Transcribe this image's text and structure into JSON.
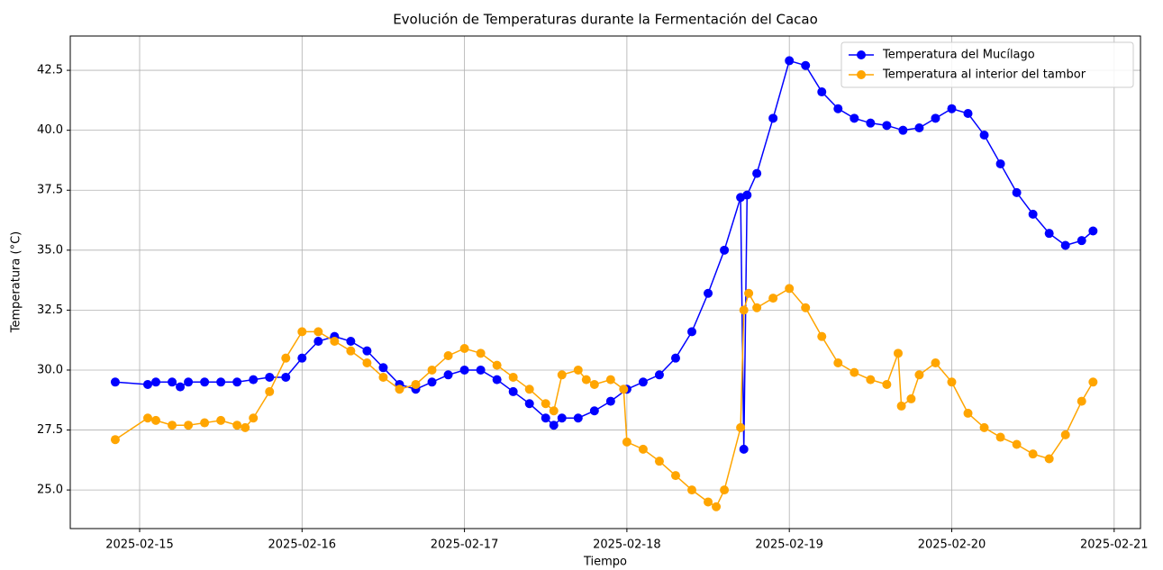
{
  "chart_data": {
    "type": "line",
    "title": "Evolución de Temperaturas durante la Fermentación del Cacao",
    "xlabel": "Tiempo",
    "ylabel": "Temperatura (°C)",
    "xlim": [
      -0.427,
      6.162
    ],
    "ylim": [
      23.39,
      43.93
    ],
    "xticks": [
      {
        "value": 0,
        "label": "2025-02-15"
      },
      {
        "value": 1,
        "label": "2025-02-16"
      },
      {
        "value": 2,
        "label": "2025-02-17"
      },
      {
        "value": 3,
        "label": "2025-02-18"
      },
      {
        "value": 4,
        "label": "2025-02-19"
      },
      {
        "value": 5,
        "label": "2025-02-20"
      },
      {
        "value": 6,
        "label": "2025-02-21"
      }
    ],
    "yticks": [
      {
        "value": 25,
        "label": "25.0"
      },
      27.5,
      {
        "value": 30,
        "label": "30.0"
      },
      32.5,
      {
        "value": 35,
        "label": "35.0"
      },
      37.5,
      {
        "value": 40,
        "label": "40.0"
      },
      42.5
    ],
    "grid": true,
    "legend": "upper right",
    "series": [
      {
        "name": "Temperatura del Mucílago",
        "color": "#0000ff",
        "x": [
          -0.15,
          0.05,
          0.1,
          0.2,
          0.25,
          0.3,
          0.4,
          0.5,
          0.6,
          0.7,
          0.8,
          0.9,
          1.0,
          1.1,
          1.2,
          1.3,
          1.4,
          1.5,
          1.6,
          1.7,
          1.8,
          1.9,
          2.0,
          2.1,
          2.2,
          2.3,
          2.4,
          2.5,
          2.55,
          2.6,
          2.7,
          2.8,
          2.9,
          3.0,
          3.1,
          3.2,
          3.3,
          3.4,
          3.5,
          3.6,
          3.7,
          3.72,
          3.74,
          3.8,
          3.9,
          4.0,
          4.1,
          4.2,
          4.3,
          4.4,
          4.5,
          4.6,
          4.7,
          4.8,
          4.9,
          5.0,
          5.1,
          5.2,
          5.3,
          5.4,
          5.5,
          5.6,
          5.7,
          5.8,
          5.87
        ],
        "values": [
          29.5,
          29.4,
          29.5,
          29.5,
          29.3,
          29.5,
          29.5,
          29.5,
          29.5,
          29.6,
          29.7,
          29.7,
          30.5,
          31.2,
          31.4,
          31.2,
          30.8,
          30.1,
          29.4,
          29.2,
          29.5,
          29.8,
          30.0,
          30.0,
          29.6,
          29.1,
          28.6,
          28.0,
          27.7,
          28.0,
          28.0,
          28.3,
          28.7,
          29.2,
          29.5,
          29.8,
          30.5,
          31.6,
          33.2,
          35.0,
          37.2,
          26.7,
          37.3,
          38.2,
          40.5,
          42.9,
          42.7,
          41.6,
          40.9,
          40.5,
          40.3,
          40.2,
          40.0,
          40.1,
          40.5,
          40.9,
          40.7,
          39.8,
          38.6,
          37.4,
          36.5,
          35.7,
          35.2,
          35.4,
          35.8
        ]
      },
      {
        "name": "Temperatura al interior del tambor",
        "color": "#ffa500",
        "x": [
          -0.15,
          0.05,
          0.1,
          0.2,
          0.3,
          0.4,
          0.5,
          0.6,
          0.65,
          0.7,
          0.8,
          0.9,
          1.0,
          1.1,
          1.2,
          1.3,
          1.4,
          1.5,
          1.6,
          1.7,
          1.8,
          1.9,
          2.0,
          2.1,
          2.2,
          2.3,
          2.4,
          2.5,
          2.55,
          2.6,
          2.7,
          2.75,
          2.8,
          2.9,
          2.98,
          3.0,
          3.1,
          3.2,
          3.3,
          3.4,
          3.5,
          3.55,
          3.6,
          3.7,
          3.72,
          3.75,
          3.8,
          3.9,
          4.0,
          4.1,
          4.2,
          4.3,
          4.4,
          4.5,
          4.6,
          4.67,
          4.69,
          4.75,
          4.8,
          4.9,
          5.0,
          5.1,
          5.2,
          5.3,
          5.4,
          5.5,
          5.6,
          5.7,
          5.8,
          5.87
        ],
        "values": [
          27.1,
          28.0,
          27.9,
          27.7,
          27.7,
          27.8,
          27.9,
          27.7,
          27.6,
          28.0,
          29.1,
          30.5,
          31.6,
          31.6,
          31.2,
          30.8,
          30.3,
          29.7,
          29.2,
          29.4,
          30.0,
          30.6,
          30.9,
          30.7,
          30.2,
          29.7,
          29.2,
          28.6,
          28.3,
          29.8,
          30.0,
          29.6,
          29.4,
          29.6,
          29.2,
          27.0,
          26.7,
          26.2,
          25.6,
          25.0,
          24.5,
          24.3,
          25.0,
          27.6,
          32.5,
          33.2,
          32.6,
          33.0,
          33.4,
          32.6,
          31.4,
          30.3,
          29.9,
          29.6,
          29.4,
          30.7,
          28.5,
          28.8,
          29.8,
          30.3,
          29.5,
          28.2,
          27.6,
          27.2,
          26.9,
          26.5,
          26.3,
          27.3,
          28.7,
          29.5
        ]
      }
    ]
  }
}
